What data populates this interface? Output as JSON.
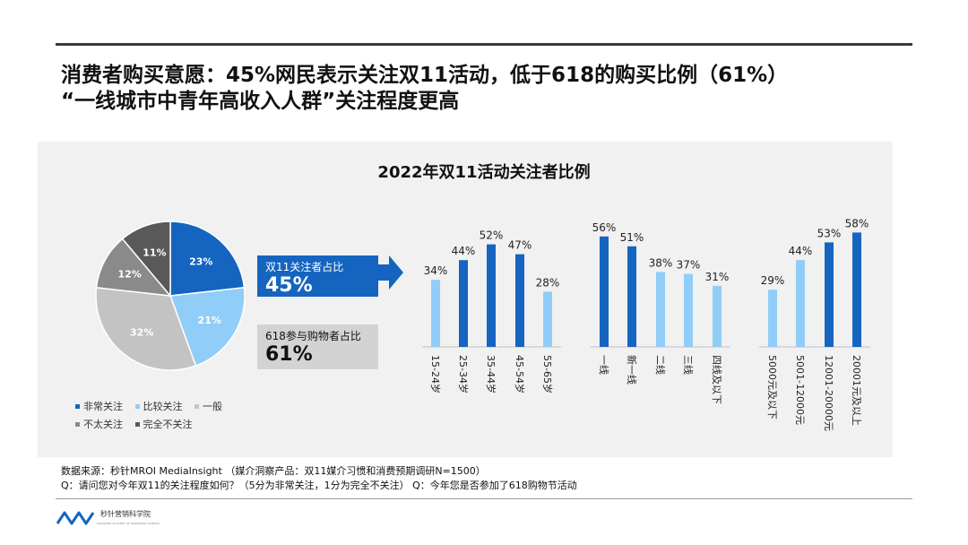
{
  "headline": {
    "line1": "消费者购买意愿：45%网民表示关注双11活动，低于618的购买比例（61%）",
    "line2": "“一线城市中青年高收入人群”关注程度更高"
  },
  "colors": {
    "dark_blue": "#1565c0",
    "light_blue": "#90cdf8",
    "light_gray": "#c3c3c3",
    "mid_gray": "#8a8a8a",
    "dark_gray": "#595959"
  },
  "callouts": {
    "shuang11": {
      "label": "双11关注者占比",
      "value": "45%"
    },
    "s618": {
      "label": "618参与购物者占比",
      "value": "61%"
    }
  },
  "legend": [
    {
      "label": "非常关注",
      "color": "#1565c0"
    },
    {
      "label": "比较关注",
      "color": "#90cdf8"
    },
    {
      "label": "一般",
      "color": "#c3c3c3"
    },
    {
      "label": "不太关注",
      "color": "#8a8a8a"
    },
    {
      "label": "完全不关注",
      "color": "#595959"
    }
  ],
  "source": {
    "line1": "数据来源：秒针MROI MediaInsight （媒介洞察产品：双11媒介习惯和消费预期调研N=1500）",
    "line2": "Q：请问您对今年双11的关注程度如何？（5分为非常关注，1分为完全不关注） Q：今年您是否参加了618购物节活动"
  },
  "logo": {
    "name": "秒针营销科学院",
    "sub": "MIAOZHEN ACADEMY OF MARKETING SCIENCE"
  },
  "chart_data": [
    {
      "type": "pie",
      "labels": [
        "非常关注",
        "比较关注",
        "一般",
        "不太关注",
        "完全不关注"
      ],
      "values": [
        23,
        21,
        32,
        12,
        11
      ],
      "value_labels": [
        "23%",
        "21%",
        "32%",
        "12%",
        "11%"
      ],
      "colors": [
        "#1565c0",
        "#90cdf8",
        "#c3c3c3",
        "#8a8a8a",
        "#595959"
      ],
      "legend_position": "bottom"
    },
    {
      "type": "bar",
      "title": "2022年双11活动关注者比例",
      "ylim": [
        0,
        70
      ],
      "grid": false,
      "groups": [
        {
          "categories": [
            "15-24岁",
            "25-34岁",
            "35-44岁",
            "45-54岁",
            "55-65岁"
          ],
          "values": [
            34,
            44,
            52,
            47,
            28
          ],
          "value_labels": [
            "34%",
            "44%",
            "52%",
            "47%",
            "28%"
          ],
          "colors": [
            "#90cdf8",
            "#1565c0",
            "#1565c0",
            "#1565c0",
            "#90cdf8"
          ]
        },
        {
          "categories": [
            "一线",
            "新一线",
            "二线",
            "三线",
            "四线及以下"
          ],
          "values": [
            56,
            51,
            38,
            37,
            31
          ],
          "value_labels": [
            "56%",
            "51%",
            "38%",
            "37%",
            "31%"
          ],
          "colors": [
            "#1565c0",
            "#1565c0",
            "#90cdf8",
            "#90cdf8",
            "#90cdf8"
          ]
        },
        {
          "categories": [
            "5000元及以下",
            "5001-12000元",
            "12001-20000元",
            "20001元及以上"
          ],
          "values": [
            29,
            44,
            53,
            58
          ],
          "value_labels": [
            "29%",
            "44%",
            "53%",
            "58%"
          ],
          "colors": [
            "#90cdf8",
            "#90cdf8",
            "#1565c0",
            "#1565c0"
          ]
        }
      ]
    }
  ]
}
